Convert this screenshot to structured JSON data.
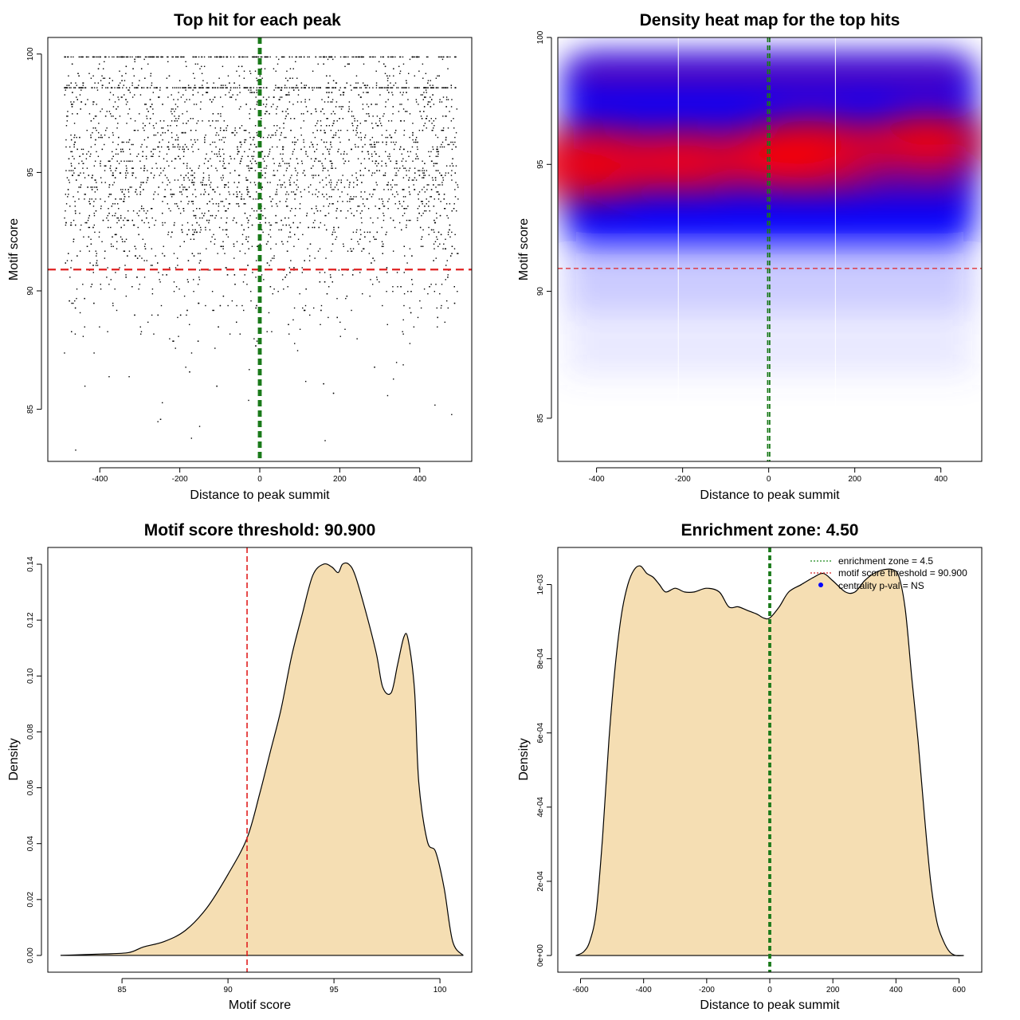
{
  "chart_data": [
    {
      "type": "scatter",
      "title": "Top hit for each peak",
      "xlabel": "Distance to peak summit",
      "ylabel": "Motif score",
      "xlim": [
        -530,
        530
      ],
      "ylim": [
        82.8,
        100.7
      ],
      "xticks": [
        -400,
        -200,
        0,
        200,
        400
      ],
      "yticks": [
        85,
        90,
        95,
        100
      ],
      "x_tick_labels": [
        "-400",
        "-200",
        "0",
        "200",
        "400"
      ],
      "y_tick_labels": [
        "85",
        "90",
        "95",
        "100"
      ],
      "threshold": 90.9,
      "zone_lines": [
        -2.25,
        2.25
      ],
      "point_x_range": [
        -490,
        495
      ],
      "dense_rows": [
        99.9,
        98.6
      ]
    },
    {
      "type": "heatmap",
      "title": "Density heat map for the top hits",
      "xlabel": "Distance to peak summit",
      "ylabel": "Motif score",
      "xlim": [
        -490,
        495
      ],
      "ylim": [
        83.3,
        100
      ],
      "xticks": [
        -400,
        -200,
        0,
        200,
        400
      ],
      "yticks": [
        85,
        90,
        95,
        100
      ],
      "x_tick_labels": [
        "-400",
        "-200",
        "0",
        "200",
        "400"
      ],
      "y_tick_labels": [
        "85",
        "90",
        "95",
        "100"
      ],
      "threshold": 90.9,
      "zone_lines": [
        -2.25,
        2.25
      ],
      "white_lines": [
        -210,
        155
      ],
      "hotspots": [
        {
          "x": -420,
          "y": 95.0,
          "w": 1.0
        },
        {
          "x": -190,
          "y": 95.1,
          "w": 0.8
        },
        {
          "x": 100,
          "y": 95.5,
          "w": 1.0
        },
        {
          "x": 370,
          "y": 95.9,
          "w": 0.85
        },
        {
          "x": 0,
          "y": 95.2,
          "w": 0.65
        }
      ]
    },
    {
      "type": "area",
      "title": "Motif score threshold: 90.900",
      "xlabel": "Motif score",
      "ylabel": "Density",
      "xlim": [
        81.5,
        101.5
      ],
      "ylim": [
        -0.006,
        0.146
      ],
      "xticks": [
        85,
        90,
        95,
        100
      ],
      "yticks": [
        0.0,
        0.02,
        0.04,
        0.06,
        0.08,
        0.1,
        0.12,
        0.14
      ],
      "x_tick_labels": [
        "85",
        "90",
        "95",
        "100"
      ],
      "y_tick_labels": [
        "0.00",
        "0.02",
        "0.04",
        "0.06",
        "0.08",
        "0.10",
        "0.12",
        "0.14"
      ],
      "threshold": 90.9,
      "x": [
        82.1,
        84.0,
        85.3,
        86.0,
        87.0,
        88.0,
        89.0,
        90.0,
        90.9,
        91.5,
        92.0,
        92.5,
        93.0,
        93.5,
        94.0,
        94.5,
        94.9,
        95.2,
        95.4,
        95.7,
        96.0,
        96.5,
        97.0,
        97.3,
        97.7,
        98.0,
        98.3,
        98.5,
        98.8,
        99.0,
        99.4,
        99.8,
        100.2,
        100.6,
        101.1
      ],
      "y": [
        0.0,
        0.0005,
        0.001,
        0.003,
        0.005,
        0.009,
        0.017,
        0.029,
        0.042,
        0.058,
        0.073,
        0.088,
        0.107,
        0.122,
        0.136,
        0.14,
        0.139,
        0.137,
        0.14,
        0.14,
        0.136,
        0.123,
        0.108,
        0.096,
        0.094,
        0.104,
        0.114,
        0.113,
        0.095,
        0.062,
        0.041,
        0.037,
        0.024,
        0.005,
        0.0
      ]
    },
    {
      "type": "area",
      "title": "Enrichment zone: 4.50",
      "xlabel": "Distance to peak summit",
      "ylabel": "Density",
      "xlim": [
        -672,
        672
      ],
      "ylim": [
        -4.5e-05,
        0.0011
      ],
      "xticks": [
        -600,
        -400,
        -200,
        0,
        200,
        400,
        600
      ],
      "yticks": [
        0.0,
        0.0002,
        0.0004,
        0.0006,
        0.0008,
        0.001
      ],
      "x_tick_labels": [
        "-600",
        "-400",
        "-200",
        "0",
        "200",
        "400",
        "600"
      ],
      "y_tick_labels": [
        "0e+00",
        "2e-04",
        "4e-04",
        "6e-04",
        "8e-04",
        "1e-03"
      ],
      "zone_lines": [
        -2.25,
        2.25
      ],
      "x": [
        -615,
        -590,
        -570,
        -550,
        -530,
        -510,
        -490,
        -470,
        -450,
        -430,
        -410,
        -390,
        -370,
        -350,
        -330,
        -300,
        -270,
        -240,
        -200,
        -160,
        -130,
        -100,
        -70,
        -40,
        -20,
        0,
        30,
        60,
        100,
        140,
        170,
        200,
        240,
        270,
        300,
        330,
        360,
        390,
        410,
        430,
        450,
        470,
        490,
        510,
        530,
        550,
        570,
        590,
        615
      ],
      "y": [
        0.0,
        1e-05,
        4e-05,
        0.00012,
        0.00032,
        0.00058,
        0.00078,
        0.00092,
        0.001,
        0.00104,
        0.00105,
        0.00103,
        0.00102,
        0.001,
        0.00098,
        0.00099,
        0.00098,
        0.00098,
        0.00099,
        0.00098,
        0.00094,
        0.00094,
        0.00093,
        0.00092,
        0.00091,
        0.00091,
        0.00094,
        0.00098,
        0.001,
        0.00102,
        0.00103,
        0.00101,
        0.00098,
        0.00098,
        0.00101,
        0.00103,
        0.00104,
        0.00104,
        0.00102,
        0.00093,
        0.00075,
        0.00058,
        0.00038,
        0.0002,
        9e-05,
        4e-05,
        1e-05,
        0.0,
        0.0
      ],
      "legend": [
        {
          "label": "enrichment zone = 4.5",
          "style": "line",
          "color": "#1e8a1e"
        },
        {
          "label": "motif score threshold = 90.900",
          "style": "line",
          "color": "#d62728"
        },
        {
          "label": "centrality p-val = NS",
          "style": "dot",
          "color": "#0000ff"
        }
      ]
    }
  ],
  "colors": {
    "threshold_line": "#e02020",
    "zone_line": "#1a7a1a",
    "fill": "#f5deb3",
    "heat_high": "#ff0000",
    "heat_mid": "#0000ff",
    "heat_low": "#ffffff"
  }
}
